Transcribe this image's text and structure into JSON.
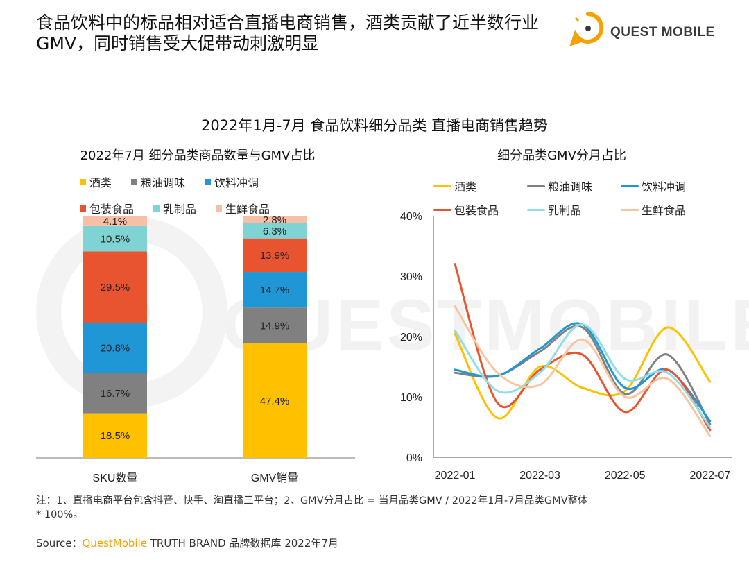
{
  "header": {
    "title": "食品饮料中的标品相对适合直播电商销售，酒类贡献了近半数行业GMV，同时销售受大促带动刺激明显",
    "logo_text": "QUEST MOBILE"
  },
  "watermark": "QUESTMOBILE",
  "colors": {
    "liquor": "#FFC000",
    "grain_oil": "#808080",
    "beverage": "#1F97D6",
    "packaged": "#E8542F",
    "dairy": "#7FD3D3",
    "fresh": "#F8BFA7",
    "fresh_line": "#F7C59F",
    "dairy_line": "#92DDE7",
    "brand_orange": "#F5A100"
  },
  "chart_data": [
    {
      "type": "bar",
      "stacked": true,
      "title": "2022年1月-7月 食品饮料细分品类 直播电商销售趋势",
      "subtitle": "2022年7月 细分品类商品数量与GMV占比",
      "categories": [
        "SKU数量",
        "GMV销量"
      ],
      "series": [
        {
          "key": "liquor",
          "name": "酒类",
          "values": [
            18.5,
            47.4
          ],
          "labels": [
            "18.5%",
            "47.4%"
          ]
        },
        {
          "key": "grain_oil",
          "name": "粮油调味",
          "values": [
            16.7,
            14.9
          ],
          "labels": [
            "16.7%",
            "14.9%"
          ]
        },
        {
          "key": "beverage",
          "name": "饮料冲调",
          "values": [
            20.8,
            14.7
          ],
          "labels": [
            "20.8%",
            "14.7%"
          ]
        },
        {
          "key": "packaged",
          "name": "包装食品",
          "values": [
            29.5,
            13.9
          ],
          "labels": [
            "29.5%",
            "13.9%"
          ]
        },
        {
          "key": "dairy",
          "name": "乳制品",
          "values": [
            10.5,
            6.3
          ],
          "labels": [
            "10.5%",
            "6.3%"
          ]
        },
        {
          "key": "fresh",
          "name": "生鲜食品",
          "values": [
            4.1,
            2.8
          ],
          "labels": [
            "4.1%",
            "2.8%"
          ]
        }
      ],
      "ylim": [
        0,
        100
      ]
    },
    {
      "type": "line",
      "title": "细分品类GMV分月占比",
      "x": [
        "2022-01",
        "2022-02",
        "2022-03",
        "2022-04",
        "2022-05",
        "2022-06",
        "2022-07"
      ],
      "x_tick_labels": [
        "2022-01",
        "2022-03",
        "2022-05",
        "2022-07"
      ],
      "y_tick_labels": [
        "0%",
        "10%",
        "20%",
        "30%",
        "40%"
      ],
      "ylim": [
        0,
        40
      ],
      "series": [
        {
          "key": "liquor",
          "name": "酒类",
          "values": [
            20.5,
            6.5,
            15,
            11.5,
            11,
            21.5,
            12.5
          ]
        },
        {
          "key": "grain_oil",
          "name": "粮油调味",
          "values": [
            14,
            13.5,
            17.5,
            21.5,
            10.5,
            17,
            5.5
          ]
        },
        {
          "key": "beverage",
          "name": "饮料冲调",
          "values": [
            14.5,
            13.5,
            18,
            22,
            11.5,
            14.5,
            6
          ]
        },
        {
          "key": "packaged",
          "name": "包装食品",
          "values": [
            32,
            9,
            14.5,
            17,
            7.5,
            14.5,
            4.5
          ]
        },
        {
          "key": "dairy",
          "name": "乳制品",
          "values": [
            21,
            11,
            14,
            22,
            13,
            14,
            5
          ]
        },
        {
          "key": "fresh",
          "name": "生鲜食品",
          "values": [
            25,
            14,
            12,
            19.5,
            10,
            13,
            3.5
          ]
        }
      ]
    }
  ],
  "notes": {
    "line1": "注：1、直播电商平台包含抖音、快手、淘直播三平台；2、GMV分月占比 = 当月品类GMV / 2022年1月-7月品类GMV整体",
    "line2": "* 100%。"
  },
  "source": {
    "prefix": "Source：",
    "brand": "QuestMobile",
    "suffix": " TRUTH BRAND 品牌数据库 2022年7月"
  }
}
